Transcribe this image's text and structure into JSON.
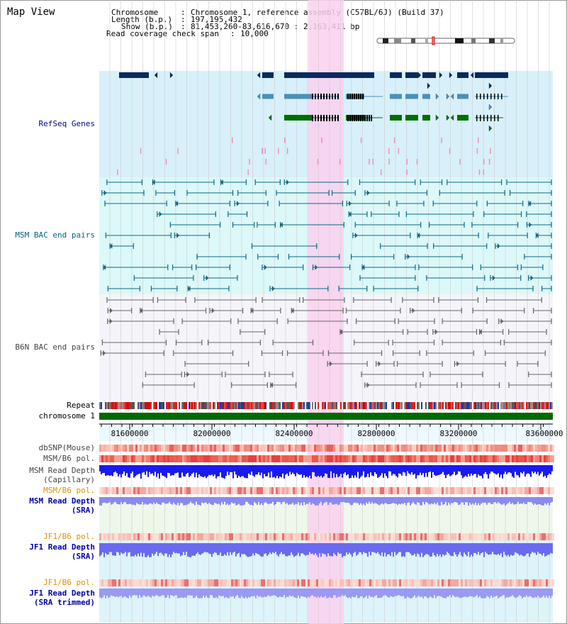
{
  "title": "Map View",
  "header": {
    "chromosome_key": "Chromosome",
    "chromosome_value": "Chromosome 1, reference assembly (C57BL/6J) (Build 37)",
    "length_key": "Length (b.p.)",
    "length_value": "197,195,432",
    "show_key": "Show (b.p.)",
    "show_value": "81,453,260-83,616,670 : 2,163,411 bp",
    "coverage_key": "Read coverage check span",
    "coverage_value": "10,000"
  },
  "tracks": {
    "refseq": "RefSeq Genes",
    "msm_bac": "MSM BAC end pairs",
    "b6n_bac": "B6N BAC end pairs",
    "repeat": "Repeat",
    "chromosome": "chromosome 1",
    "dbsnp": "dbSNP(Mouse)",
    "msm_b6_pol_1": "MSM/B6 pol.",
    "msm_read_depth_cap_1": "MSM Read Depth",
    "msm_read_depth_cap_2": "(Capillary)",
    "msm_b6_pol_2": "MSM/B6 pol.",
    "msm_read_depth_sra_1": "MSM Read Depth",
    "msm_read_depth_sra_2": "(SRA)",
    "jf1_b6_pol_1": "JF1/B6 pol.",
    "jf1_read_depth_sra_1": "JF1 Read Depth",
    "jf1_read_depth_sra_2": "(SRA)",
    "jf1_b6_pol_2": "JF1/B6 pol.",
    "jf1_read_depth_trim_1": "JF1 Read Depth",
    "jf1_read_depth_trim_2": "(SRA trimmed)"
  },
  "axis_ticks": [
    "81600000",
    "82000000",
    "82400000",
    "82800000",
    "83200000",
    "83600000"
  ],
  "colors": {
    "refseq_bg": "#d8f0fa",
    "msm_bg": "#dcf8f8",
    "b6n_bg": "#f4f4fa",
    "highlight": "#fad0ee",
    "refseq_label": "#00008b",
    "msm_label": "#006680",
    "b6n_label": "#444444",
    "pol_orange": "#e09000",
    "sra_label": "#0000aa"
  }
}
